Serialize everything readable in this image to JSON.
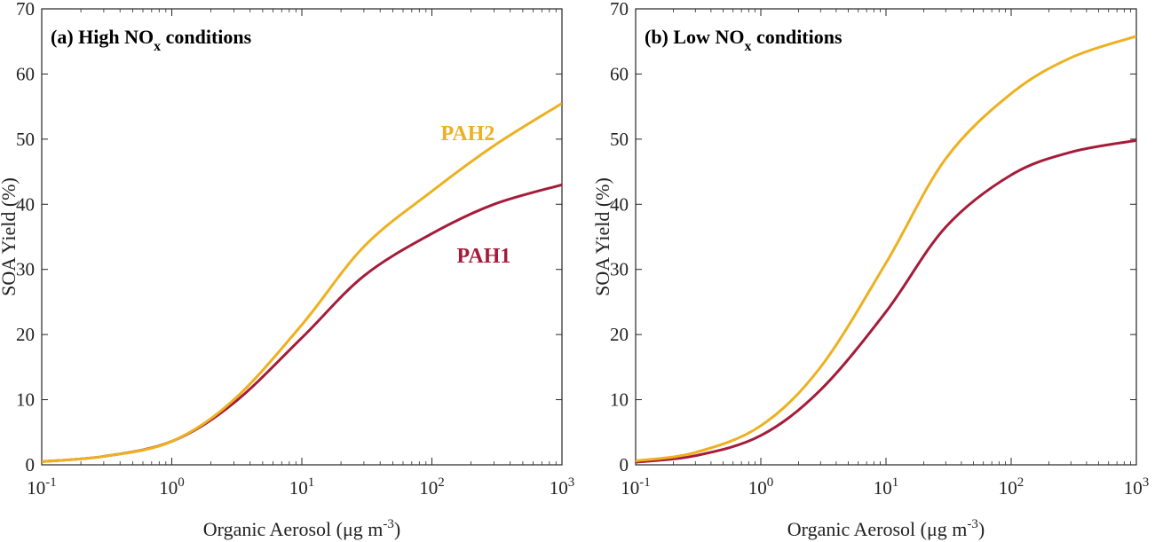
{
  "chart_data": [
    {
      "type": "line",
      "title": "(a) High NO",
      "title_sub": "x",
      "title_tail": " conditions",
      "xlabel": "Organic Aerosol (μg m",
      "xlabel_sup": "-3",
      "xlabel_tail": ")",
      "ylabel": "SOA Yield (%)",
      "xscale": "log",
      "xlim": [
        0.1,
        1000
      ],
      "ylim": [
        0,
        70
      ],
      "xticks": [
        {
          "base": "10",
          "exp": "-1"
        },
        {
          "base": "10",
          "exp": "0"
        },
        {
          "base": "10",
          "exp": "1"
        },
        {
          "base": "10",
          "exp": "2"
        },
        {
          "base": "10",
          "exp": "3"
        }
      ],
      "yticks": [
        "0",
        "10",
        "20",
        "30",
        "40",
        "50",
        "60",
        "70"
      ],
      "series": [
        {
          "name": "PAH1",
          "color": "#A51C3A",
          "x": [
            0.1,
            0.3,
            1,
            3,
            10,
            30,
            100,
            300,
            1000
          ],
          "y": [
            0.5,
            1.3,
            3.6,
            9.5,
            19.5,
            29.0,
            35.5,
            40.0,
            43.0
          ]
        },
        {
          "name": "PAH2",
          "color": "#EDB120",
          "x": [
            0.1,
            0.3,
            1,
            3,
            10,
            30,
            100,
            300,
            1000
          ],
          "y": [
            0.5,
            1.3,
            3.6,
            10.0,
            21.5,
            33.5,
            42.0,
            49.0,
            55.5
          ]
        }
      ]
    },
    {
      "type": "line",
      "title": "(b) Low NO",
      "title_sub": "x",
      "title_tail": " conditions",
      "xlabel": "Organic Aerosol (μg m",
      "xlabel_sup": "-3",
      "xlabel_tail": ")",
      "ylabel": "SOA Yield (%)",
      "xscale": "log",
      "xlim": [
        0.1,
        1000
      ],
      "ylim": [
        0,
        70
      ],
      "xticks": [
        {
          "base": "10",
          "exp": "-1"
        },
        {
          "base": "10",
          "exp": "0"
        },
        {
          "base": "10",
          "exp": "1"
        },
        {
          "base": "10",
          "exp": "2"
        },
        {
          "base": "10",
          "exp": "3"
        }
      ],
      "yticks": [
        "0",
        "10",
        "20",
        "30",
        "40",
        "50",
        "60",
        "70"
      ],
      "series": [
        {
          "color": "#A51C3A",
          "x": [
            0.1,
            0.3,
            1,
            3,
            10,
            30,
            100,
            300,
            1000
          ],
          "y": [
            0.4,
            1.4,
            4.5,
            11.5,
            23.5,
            36.5,
            44.5,
            48.0,
            49.8
          ]
        },
        {
          "color": "#EDB120",
          "x": [
            0.1,
            0.3,
            1,
            3,
            10,
            30,
            100,
            300,
            1000
          ],
          "y": [
            0.6,
            1.9,
            6.0,
            15.0,
            31.0,
            47.0,
            57.0,
            62.5,
            65.8
          ]
        }
      ]
    }
  ]
}
